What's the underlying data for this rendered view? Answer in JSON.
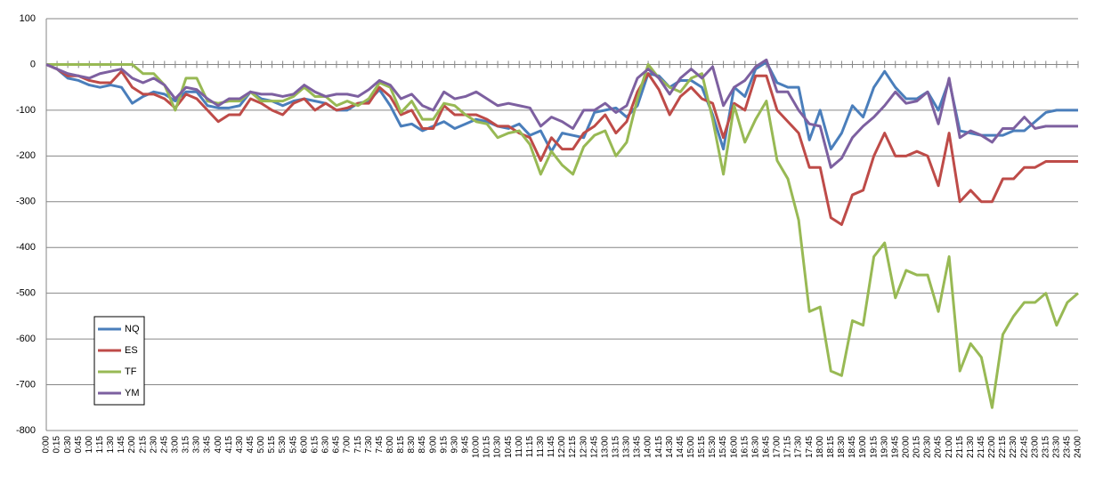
{
  "chart_data": {
    "type": "line",
    "categories": [
      "0:00",
      "0:15",
      "0:30",
      "0:45",
      "1:00",
      "1:15",
      "1:30",
      "1:45",
      "2:00",
      "2:15",
      "2:30",
      "2:45",
      "3:00",
      "3:15",
      "3:30",
      "3:45",
      "4:00",
      "4:15",
      "4:30",
      "4:45",
      "5:00",
      "5:15",
      "5:30",
      "5:45",
      "6:00",
      "6:15",
      "6:30",
      "6:45",
      "7:00",
      "7:15",
      "7:30",
      "7:45",
      "8:00",
      "8:15",
      "8:30",
      "8:45",
      "9:00",
      "9:15",
      "9:30",
      "9:45",
      "10:00",
      "10:15",
      "10:30",
      "10:45",
      "11:00",
      "11:15",
      "11:30",
      "11:45",
      "12:00",
      "12:15",
      "12:30",
      "12:45",
      "13:00",
      "13:15",
      "13:30",
      "13:45",
      "14:00",
      "14:15",
      "14:30",
      "14:45",
      "15:00",
      "15:15",
      "15:30",
      "15:45",
      "16:00",
      "16:15",
      "16:30",
      "16:45",
      "17:00",
      "17:15",
      "17:30",
      "17:45",
      "18:00",
      "18:15",
      "18:30",
      "18:45",
      "19:00",
      "19:15",
      "19:30",
      "19:45",
      "20:00",
      "20:15",
      "20:30",
      "20:45",
      "21:00",
      "21:15",
      "21:30",
      "21:45",
      "22:00",
      "22:15",
      "22:30",
      "22:45",
      "23:00",
      "23:15",
      "23:30",
      "23:45",
      "24:00"
    ],
    "series": [
      {
        "name": "NQ",
        "color": "#4a7ebb",
        "values": [
          0,
          -10,
          -30,
          -35,
          -45,
          -50,
          -45,
          -50,
          -85,
          -70,
          -60,
          -65,
          -80,
          -60,
          -60,
          -90,
          -95,
          -95,
          -90,
          -60,
          -75,
          -80,
          -90,
          -80,
          -75,
          -80,
          -85,
          -100,
          -100,
          -85,
          -80,
          -55,
          -90,
          -135,
          -130,
          -145,
          -135,
          -125,
          -140,
          -130,
          -120,
          -125,
          -135,
          -140,
          -130,
          -155,
          -145,
          -190,
          -150,
          -155,
          -160,
          -105,
          -100,
          -95,
          -115,
          -90,
          -20,
          -25,
          -50,
          -35,
          -35,
          -50,
          -110,
          -185,
          -50,
          -70,
          -10,
          5,
          -40,
          -50,
          -50,
          -165,
          -100,
          -185,
          -150,
          -90,
          -115,
          -50,
          -15,
          -50,
          -75,
          -75,
          -60,
          -100,
          -35,
          -145,
          -150,
          -155,
          -155,
          -155,
          -145,
          -145,
          -125,
          -105,
          -100,
          -100,
          -100
        ]
      },
      {
        "name": "ES",
        "color": "#be4b48",
        "values": [
          0,
          -10,
          -25,
          -25,
          -35,
          -40,
          -40,
          -15,
          -50,
          -65,
          -65,
          -75,
          -95,
          -65,
          -75,
          -100,
          -125,
          -110,
          -110,
          -75,
          -85,
          -100,
          -110,
          -85,
          -75,
          -100,
          -85,
          -100,
          -95,
          -85,
          -85,
          -50,
          -70,
          -110,
          -100,
          -140,
          -140,
          -90,
          -110,
          -110,
          -110,
          -120,
          -135,
          -135,
          -150,
          -160,
          -210,
          -160,
          -185,
          -185,
          -150,
          -135,
          -110,
          -150,
          -125,
          -60,
          -20,
          -55,
          -110,
          -70,
          -50,
          -75,
          -85,
          -160,
          -85,
          -100,
          -25,
          -25,
          -100,
          -125,
          -150,
          -225,
          -225,
          -335,
          -350,
          -285,
          -275,
          -200,
          -150,
          -200,
          -200,
          -190,
          -200,
          -265,
          -150,
          -300,
          -275,
          -300,
          -300,
          -250,
          -250,
          -225,
          -225,
          -212,
          -212,
          -212,
          -212
        ]
      },
      {
        "name": "TF",
        "color": "#98b954",
        "values": [
          0,
          0,
          0,
          0,
          0,
          0,
          0,
          0,
          0,
          -20,
          -20,
          -45,
          -100,
          -30,
          -30,
          -80,
          -85,
          -80,
          -80,
          -60,
          -80,
          -80,
          -80,
          -70,
          -50,
          -70,
          -70,
          -90,
          -80,
          -90,
          -75,
          -40,
          -50,
          -105,
          -80,
          -120,
          -120,
          -85,
          -90,
          -110,
          -125,
          -130,
          -160,
          -150,
          -145,
          -175,
          -240,
          -190,
          -220,
          -240,
          -180,
          -155,
          -145,
          -200,
          -170,
          -75,
          0,
          -30,
          -50,
          -60,
          -30,
          -20,
          -120,
          -240,
          -90,
          -170,
          -120,
          -80,
          -210,
          -250,
          -340,
          -540,
          -530,
          -670,
          -680,
          -560,
          -570,
          -420,
          -390,
          -510,
          -450,
          -460,
          -460,
          -540,
          -420,
          -670,
          -610,
          -640,
          -750,
          -590,
          -550,
          -520,
          -520,
          -500,
          -570,
          -520,
          -500
        ]
      },
      {
        "name": "YM",
        "color": "#7d60a0",
        "values": [
          0,
          -10,
          -20,
          -25,
          -30,
          -20,
          -15,
          -10,
          -30,
          -40,
          -30,
          -45,
          -75,
          -50,
          -55,
          -75,
          -90,
          -75,
          -75,
          -60,
          -65,
          -65,
          -70,
          -65,
          -45,
          -60,
          -70,
          -65,
          -65,
          -70,
          -55,
          -35,
          -45,
          -75,
          -65,
          -90,
          -100,
          -60,
          -75,
          -70,
          -60,
          -75,
          -90,
          -85,
          -90,
          -95,
          -135,
          -115,
          -125,
          -140,
          -100,
          -100,
          -85,
          -105,
          -90,
          -30,
          -10,
          -30,
          -65,
          -30,
          -10,
          -30,
          -5,
          -90,
          -50,
          -35,
          -5,
          10,
          -60,
          -60,
          -100,
          -130,
          -135,
          -225,
          -205,
          -160,
          -135,
          -115,
          -90,
          -60,
          -85,
          -80,
          -60,
          -130,
          -30,
          -160,
          -145,
          -155,
          -170,
          -140,
          -140,
          -115,
          -140,
          -135,
          -135,
          -135,
          -135
        ]
      }
    ],
    "ylim": [
      -800,
      100
    ],
    "yticks": [
      -800,
      -700,
      -600,
      -500,
      -400,
      -300,
      -200,
      -100,
      0,
      100
    ],
    "grid": true,
    "legend": "lower left"
  }
}
